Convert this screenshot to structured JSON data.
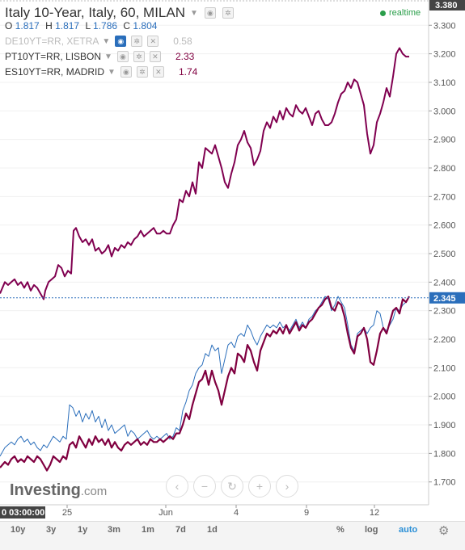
{
  "header": {
    "title": "Italy 10-Year, Italy, 60, MILAN",
    "realtime": "realtime",
    "ohlc": {
      "o_label": "O",
      "o": "1.817",
      "h_label": "H",
      "h": "1.817",
      "l_label": "L",
      "l": "1.786",
      "c_label": "C",
      "c": "1.804"
    }
  },
  "legend": [
    {
      "name": "DE10YT=RR, XETRA",
      "value": "0.58",
      "color": "#c8c8c8"
    },
    {
      "name": "PT10YT=RR, LISBON",
      "value": "2.33",
      "color": "#800040"
    },
    {
      "name": "ES10YT=RR, MADRID",
      "value": "1.74",
      "color": "#800040"
    }
  ],
  "chart_data": {
    "type": "line",
    "ylim": [
      1.62,
      3.38
    ],
    "y_ticks": [
      "3.300",
      "3.200",
      "3.100",
      "3.000",
      "2.900",
      "2.800",
      "2.700",
      "2.600",
      "2.500",
      "2.400",
      "2.300",
      "2.200",
      "2.100",
      "2.000",
      "1.900",
      "1.800",
      "1.700"
    ],
    "y_top_label": "3.380",
    "x_tick_labels": [
      "25",
      "Jun",
      "4",
      "9",
      "12"
    ],
    "x_start_label": "0 03:00:00",
    "last_price": "2.345",
    "last_price_value": 2.345,
    "series": [
      {
        "color": "#800050",
        "x": [
          0,
          6,
          10,
          14,
          18,
          22,
          26,
          30,
          34,
          38,
          42,
          46,
          50,
          54,
          56,
          60,
          64,
          68,
          72,
          76,
          80,
          84,
          88,
          91,
          94,
          98,
          102,
          106,
          110,
          114,
          118,
          122,
          126,
          130,
          134,
          138,
          142,
          146,
          150,
          154,
          158,
          162,
          166,
          170,
          174,
          178,
          182,
          186,
          190,
          194,
          198,
          202,
          206,
          210,
          214,
          218,
          222,
          226,
          230,
          234,
          238,
          242,
          246,
          250,
          254,
          258,
          262,
          266,
          270,
          274,
          278,
          282,
          286,
          290,
          294,
          298,
          302,
          306,
          310,
          314,
          318,
          322,
          326,
          330,
          334,
          338,
          342,
          346,
          350,
          354,
          358,
          362,
          366,
          370,
          374,
          378,
          382,
          386,
          390,
          394,
          398,
          402,
          406,
          410,
          414,
          418,
          422,
          426,
          430,
          434,
          438,
          442,
          446,
          450,
          454,
          458,
          462,
          466,
          470,
          474,
          478,
          482,
          486,
          490,
          494,
          498,
          502,
          506
        ],
        "y": [
          2.36,
          2.4,
          2.39,
          2.4,
          2.41,
          2.39,
          2.4,
          2.38,
          2.4,
          2.37,
          2.39,
          2.38,
          2.36,
          2.34,
          2.37,
          2.4,
          2.41,
          2.42,
          2.46,
          2.45,
          2.42,
          2.44,
          2.43,
          2.58,
          2.59,
          2.56,
          2.54,
          2.55,
          2.53,
          2.55,
          2.51,
          2.52,
          2.5,
          2.51,
          2.53,
          2.49,
          2.52,
          2.51,
          2.53,
          2.52,
          2.54,
          2.53,
          2.55,
          2.56,
          2.58,
          2.56,
          2.57,
          2.58,
          2.59,
          2.57,
          2.57,
          2.58,
          2.57,
          2.57,
          2.6,
          2.62,
          2.69,
          2.68,
          2.72,
          2.7,
          2.75,
          2.71,
          2.82,
          2.8,
          2.87,
          2.86,
          2.85,
          2.88,
          2.84,
          2.8,
          2.75,
          2.73,
          2.78,
          2.82,
          2.88,
          2.9,
          2.93,
          2.89,
          2.87,
          2.81,
          2.83,
          2.86,
          2.93,
          2.96,
          2.94,
          2.98,
          2.96,
          3.0,
          2.97,
          3.01,
          2.99,
          2.98,
          3.02,
          3.0,
          2.99,
          3.01,
          2.98,
          2.95,
          2.99,
          3.0,
          2.97,
          2.95,
          2.95,
          2.96,
          2.99,
          3.03,
          3.06,
          3.07,
          3.1,
          3.08,
          3.11,
          3.1,
          3.06,
          3.02,
          2.92,
          2.85,
          2.88,
          2.96,
          2.99,
          3.03,
          3.08,
          3.05,
          3.12,
          3.2,
          3.22,
          3.2,
          3.19,
          3.19
        ]
      },
      {
        "color": "#2a6ebb",
        "x": [
          0,
          6,
          10,
          14,
          18,
          22,
          26,
          30,
          34,
          38,
          42,
          46,
          50,
          54,
          58,
          62,
          66,
          70,
          74,
          78,
          82,
          86,
          90,
          94,
          98,
          102,
          106,
          110,
          114,
          118,
          122,
          126,
          130,
          134,
          138,
          142,
          146,
          150,
          154,
          158,
          162,
          166,
          170,
          174,
          178,
          182,
          186,
          190,
          194,
          198,
          202,
          206,
          210,
          214,
          218,
          222,
          226,
          230,
          234,
          238,
          242,
          246,
          250,
          254,
          258,
          262,
          266,
          270,
          274,
          278,
          282,
          286,
          290,
          294,
          298,
          302,
          306,
          310,
          314,
          318,
          322,
          326,
          330,
          334,
          338,
          342,
          346,
          350,
          354,
          358,
          362,
          366,
          370,
          374,
          378,
          382,
          386,
          390,
          394,
          398,
          402,
          406,
          410,
          414,
          418,
          422,
          426,
          430,
          434,
          438,
          442,
          446,
          450,
          454,
          458,
          462,
          466,
          470,
          474,
          478,
          482,
          486,
          490,
          494,
          498,
          502,
          506
        ],
        "y": [
          1.79,
          1.82,
          1.83,
          1.84,
          1.83,
          1.85,
          1.86,
          1.84,
          1.85,
          1.83,
          1.84,
          1.82,
          1.81,
          1.83,
          1.82,
          1.84,
          1.86,
          1.85,
          1.84,
          1.86,
          1.85,
          1.97,
          1.96,
          1.93,
          1.95,
          1.91,
          1.94,
          1.92,
          1.95,
          1.91,
          1.93,
          1.89,
          1.92,
          1.88,
          1.9,
          1.87,
          1.88,
          1.89,
          1.9,
          1.86,
          1.88,
          1.87,
          1.85,
          1.86,
          1.87,
          1.88,
          1.86,
          1.85,
          1.86,
          1.85,
          1.86,
          1.87,
          1.85,
          1.86,
          1.89,
          1.88,
          1.95,
          1.98,
          2.02,
          2.04,
          2.08,
          2.1,
          2.11,
          2.15,
          2.14,
          2.18,
          2.16,
          2.17,
          2.08,
          2.13,
          2.18,
          2.19,
          2.17,
          2.21,
          2.22,
          2.21,
          2.25,
          2.23,
          2.2,
          2.18,
          2.21,
          2.23,
          2.25,
          2.24,
          2.25,
          2.24,
          2.26,
          2.24,
          2.25,
          2.23,
          2.25,
          2.27,
          2.24,
          2.26,
          2.24,
          2.27,
          2.28,
          2.3,
          2.31,
          2.33,
          2.35,
          2.34,
          2.3,
          2.32,
          2.35,
          2.33,
          2.31,
          2.25,
          2.18,
          2.16,
          2.22,
          2.23,
          2.24,
          2.22,
          2.24,
          2.25,
          2.3,
          2.29,
          2.24,
          2.23,
          2.25,
          2.27,
          2.31,
          2.3,
          2.32,
          2.33,
          2.35
        ]
      },
      {
        "color": "#800040",
        "x": [
          0,
          6,
          10,
          14,
          18,
          22,
          26,
          30,
          34,
          38,
          42,
          46,
          50,
          54,
          58,
          62,
          66,
          70,
          74,
          78,
          82,
          86,
          90,
          94,
          98,
          102,
          106,
          110,
          114,
          118,
          122,
          126,
          130,
          134,
          138,
          142,
          146,
          150,
          154,
          158,
          162,
          166,
          170,
          174,
          178,
          182,
          186,
          190,
          194,
          198,
          202,
          206,
          210,
          214,
          218,
          222,
          226,
          230,
          234,
          238,
          242,
          246,
          250,
          254,
          258,
          262,
          266,
          270,
          274,
          278,
          282,
          286,
          290,
          294,
          298,
          302,
          306,
          310,
          314,
          318,
          322,
          326,
          330,
          334,
          338,
          342,
          346,
          350,
          354,
          358,
          362,
          366,
          370,
          374,
          378,
          382,
          386,
          390,
          394,
          398,
          402,
          406,
          410,
          414,
          418,
          422,
          426,
          430,
          434,
          438,
          442,
          446,
          450,
          454,
          458,
          462,
          466,
          470,
          474,
          478,
          482,
          486,
          490,
          494,
          498,
          502,
          506
        ],
        "y": [
          1.75,
          1.77,
          1.76,
          1.78,
          1.79,
          1.77,
          1.78,
          1.77,
          1.79,
          1.78,
          1.77,
          1.79,
          1.78,
          1.76,
          1.74,
          1.76,
          1.79,
          1.78,
          1.77,
          1.79,
          1.78,
          1.83,
          1.84,
          1.82,
          1.86,
          1.84,
          1.82,
          1.85,
          1.83,
          1.86,
          1.84,
          1.85,
          1.83,
          1.85,
          1.82,
          1.84,
          1.82,
          1.81,
          1.83,
          1.84,
          1.83,
          1.84,
          1.85,
          1.83,
          1.84,
          1.83,
          1.85,
          1.84,
          1.84,
          1.85,
          1.84,
          1.85,
          1.86,
          1.85,
          1.87,
          1.87,
          1.9,
          1.94,
          1.92,
          1.97,
          2.01,
          2.05,
          2.06,
          2.09,
          2.04,
          2.09,
          2.05,
          2.02,
          1.97,
          2.02,
          2.07,
          2.1,
          2.08,
          2.15,
          2.14,
          2.12,
          2.18,
          2.16,
          2.12,
          2.09,
          2.16,
          2.19,
          2.22,
          2.21,
          2.23,
          2.22,
          2.24,
          2.22,
          2.25,
          2.22,
          2.24,
          2.26,
          2.23,
          2.25,
          2.24,
          2.26,
          2.27,
          2.29,
          2.31,
          2.32,
          2.34,
          2.35,
          2.31,
          2.3,
          2.33,
          2.32,
          2.28,
          2.22,
          2.17,
          2.15,
          2.21,
          2.22,
          2.24,
          2.2,
          2.12,
          2.11,
          2.16,
          2.22,
          2.24,
          2.22,
          2.26,
          2.3,
          2.31,
          2.29,
          2.34,
          2.33,
          2.35
        ]
      }
    ]
  },
  "nav": {
    "left": "‹",
    "zoom_out": "−",
    "reset": "↻",
    "zoom_in": "+",
    "right": "›"
  },
  "logo": {
    "main": "Investing",
    "suffix": ".com"
  },
  "bottombar": {
    "timeframes": [
      "10y",
      "3y",
      "1y",
      "3m",
      "1m",
      "7d",
      "1d"
    ],
    "percent": "%",
    "log": "log",
    "auto": "auto"
  }
}
